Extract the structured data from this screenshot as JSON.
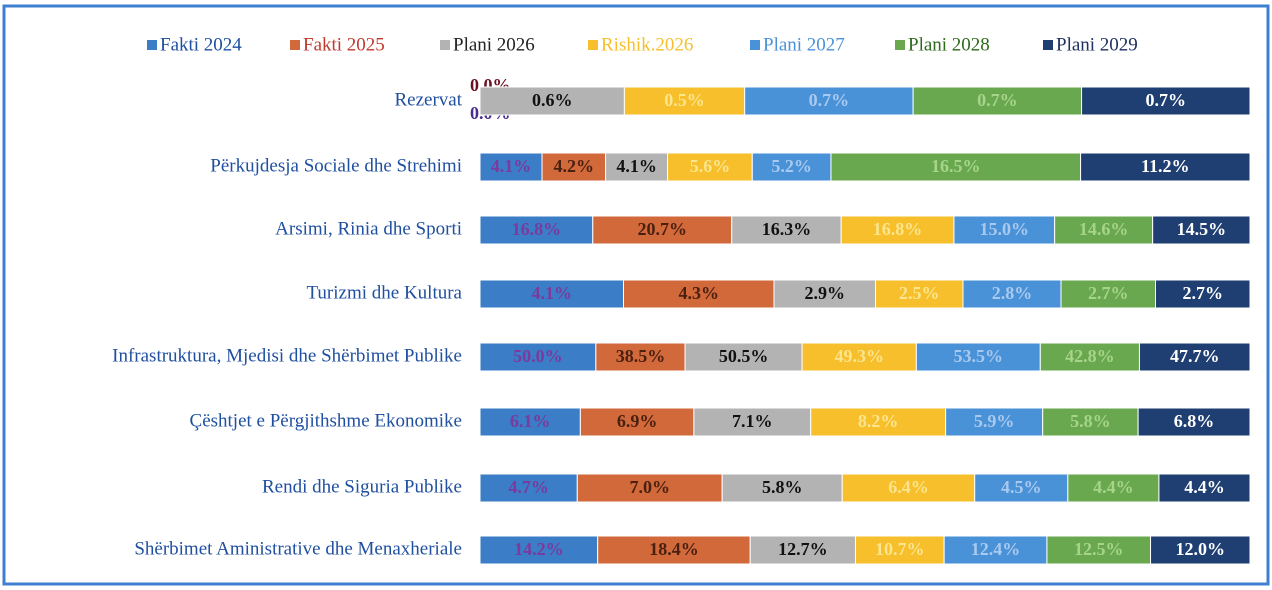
{
  "chart_data": {
    "type": "stacked-bar-100",
    "categories": [
      "Rezervat",
      "Përkujdesja Sociale dhe Strehimi",
      "Arsimi, Rinia dhe Sporti",
      "Turizmi dhe Kultura",
      "Infrastruktura, Mjedisi dhe Shërbimet Publike",
      "Çështjet e Përgjithshme Ekonomike",
      "Rendi dhe Siguria Publike",
      "Shërbimet Aministrative dhe Menaxheriale"
    ],
    "series": [
      {
        "name": "Fakti 2024",
        "color": "#3b7dc6",
        "values": [
          0.0,
          4.1,
          16.8,
          4.1,
          50.0,
          6.1,
          4.7,
          14.2
        ],
        "value_labels": [
          "0.0%",
          "4.1%",
          "16.8%",
          "4.1%",
          "50.0%",
          "6.1%",
          "4.7%",
          "14.2%"
        ]
      },
      {
        "name": "Fakti 2025",
        "color": "#d2693b",
        "values": [
          0.0,
          4.2,
          20.7,
          4.3,
          38.5,
          6.9,
          7.0,
          18.4
        ],
        "value_labels": [
          "0.0%",
          "4.2%",
          "20.7%",
          "4.3%",
          "38.5%",
          "6.9%",
          "7.0%",
          "18.4%"
        ]
      },
      {
        "name": "Plani 2026",
        "color": "#b3b3b3",
        "values": [
          0.6,
          4.1,
          16.3,
          2.9,
          50.5,
          7.1,
          5.8,
          12.7
        ],
        "value_labels": [
          "0.6%",
          "4.1%",
          "16.3%",
          "2.9%",
          "50.5%",
          "7.1%",
          "5.8%",
          "12.7%"
        ]
      },
      {
        "name": "Rishik.2026",
        "color": "#f6bf2b",
        "values": [
          0.5,
          5.6,
          16.8,
          2.5,
          49.3,
          8.2,
          6.4,
          10.7
        ],
        "value_labels": [
          "0.5%",
          "5.6%",
          "16.8%",
          "2.5%",
          "49.3%",
          "8.2%",
          "6.4%",
          "10.7%"
        ]
      },
      {
        "name": "Plani 2027",
        "color": "#4a92d8",
        "values": [
          0.7,
          5.2,
          15.0,
          2.8,
          53.5,
          5.9,
          4.5,
          12.4
        ],
        "value_labels": [
          "0.7%",
          "5.2%",
          "15.0%",
          "2.8%",
          "53.5%",
          "5.9%",
          "4.5%",
          "12.4%"
        ]
      },
      {
        "name": "Plani 2028",
        "color": "#6aa84f",
        "values": [
          0.7,
          16.5,
          14.6,
          2.7,
          42.8,
          5.8,
          4.4,
          12.5
        ],
        "value_labels": [
          "0.7%",
          "16.5%",
          "14.6%",
          "2.7%",
          "42.8%",
          "5.8%",
          "4.4%",
          "12.5%"
        ]
      },
      {
        "name": "Plani 2029",
        "color": "#1f3f72",
        "values": [
          0.7,
          11.2,
          14.5,
          2.7,
          47.7,
          6.8,
          4.4,
          12.0
        ],
        "value_labels": [
          "0.7%",
          "11.2%",
          "14.5%",
          "2.7%",
          "47.7%",
          "6.8%",
          "4.4%",
          "12.0%"
        ]
      }
    ]
  }
}
